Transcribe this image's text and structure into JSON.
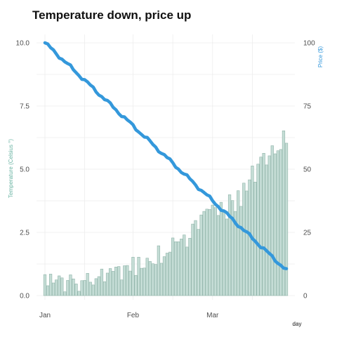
{
  "chart_data": {
    "type": "bar+line",
    "title": "Temperature down, price up",
    "xlabel": "day",
    "ylabel_left": "Temperature (Celsius °)",
    "ylabel_right": "Price ($)",
    "ylim_left": [
      0,
      10
    ],
    "ylim_right": [
      0,
      100
    ],
    "left_ticks": [
      "0.0",
      "2.5",
      "5.0",
      "7.5",
      "10.0"
    ],
    "right_ticks": [
      "0",
      "25",
      "50",
      "75",
      "100"
    ],
    "x_ticks": [
      {
        "label": "Jan",
        "day": 0
      },
      {
        "label": "Feb",
        "day": 31
      },
      {
        "label": "Mar",
        "day": 59
      }
    ],
    "grid": true,
    "colors": {
      "temperature": "#69b3a2",
      "price": "#3498db"
    },
    "temperature_series": {
      "axis": "left",
      "values": [
        0.83,
        0.39,
        0.85,
        0.5,
        0.62,
        0.78,
        0.7,
        0.15,
        0.6,
        0.82,
        0.66,
        0.46,
        0.17,
        0.59,
        0.6,
        0.88,
        0.53,
        0.42,
        0.67,
        0.75,
        1.05,
        0.55,
        0.89,
        1.07,
        0.96,
        1.13,
        1.15,
        0.62,
        1.18,
        1.19,
        0.97,
        1.52,
        0.8,
        1.52,
        1.08,
        1.09,
        1.48,
        1.35,
        1.26,
        1.23,
        1.97,
        1.28,
        1.54,
        1.68,
        1.72,
        2.28,
        2.13,
        2.13,
        2.24,
        2.4,
        1.92,
        2.27,
        2.83,
        2.97,
        2.62,
        3.19,
        3.33,
        3.42,
        3.41,
        3.58,
        3.48,
        3.17,
        3.69,
        3.38,
        3.03,
        3.99,
        3.76,
        3.33,
        4.15,
        3.53,
        4.45,
        4.14,
        4.58,
        5.13,
        4.49,
        5.2,
        5.48,
        5.63,
        5.17,
        5.53,
        5.93,
        5.61,
        5.73,
        5.78,
        6.52,
        6.03
      ]
    },
    "price_series": {
      "axis": "right",
      "start": 100,
      "end": 10
    }
  }
}
